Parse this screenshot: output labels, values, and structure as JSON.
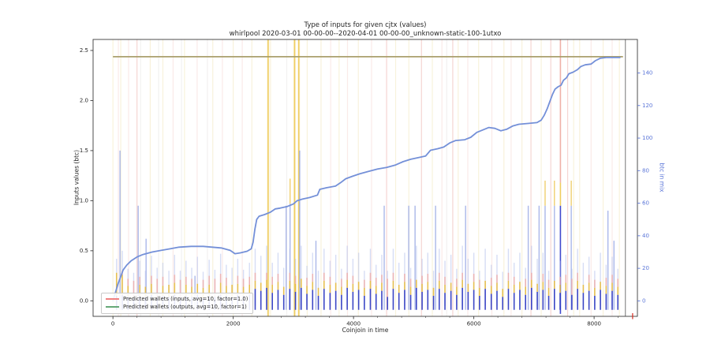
{
  "chart_data": {
    "type": "line",
    "title": "Type of inputs for given cjtx (values)",
    "subtitle": "whirlpool 2020-03-01 00-00-00--2020-04-01 00-00-00_unknown-static-100-1utxo",
    "xlabel": "Coinjoin in time",
    "ylabel_left": "Inputs values (btc)",
    "ylabel_right": "btc in mix",
    "x_ticks": [
      "0",
      "2000",
      "4000",
      "6000",
      "8000"
    ],
    "x_tick_values": [
      0,
      2000,
      4000,
      6000,
      8000
    ],
    "y_ticks_left": [
      "0.0",
      "0.5",
      "1.0",
      "1.5",
      "2.0",
      "2.5"
    ],
    "y_tick_values_left": [
      0.0,
      0.5,
      1.0,
      1.5,
      2.0,
      2.5
    ],
    "y_ticks_right": [
      "0",
      "20",
      "40",
      "60",
      "80",
      "100",
      "120",
      "140"
    ],
    "y_tick_values_right": [
      0,
      20,
      40,
      60,
      80,
      100,
      120,
      140
    ],
    "xlim": [
      -330,
      8720
    ],
    "ylim_left": [
      -0.155,
      2.61
    ],
    "ylim_right": [
      -9.5,
      160.6
    ],
    "grid": false,
    "legend_position": "lower-left",
    "legend": {
      "items": [
        {
          "label": "Predicted wallets (inputs, avg=10, factor=1.0)",
          "color": "#f08080"
        },
        {
          "label": "Predicted wallets (outputs, avg=10, factor=1)",
          "color": "#66a878"
        }
      ]
    },
    "colors": {
      "mix_line": "#7490d8",
      "hline": "#a59b66",
      "end_vline": "#5f5f5f",
      "end_marker": "#d93025",
      "event_blue": "#2a35c0",
      "event_blue_strong": "#2b35c8",
      "event_gold": "#e9ba32",
      "event_pink": "#efa9a5",
      "event_pale": "#aebcec",
      "tall_blue": "#8e9fe2",
      "pale_yellow": "#f3e7bd",
      "pale_pink": "#f5d8d6",
      "pale_gray": "#e9e7e6",
      "salmon": "#eeb9b4",
      "strong_gold": "#edc84e",
      "salmon_strong": "#eda89e",
      "axis": "#3a3a3a",
      "right_axis_text": "#5b76d8",
      "text": "#262626"
    },
    "mix_in_btc_line": {
      "name": "btc in mix (right axis)",
      "points": [
        [
          0,
          0
        ],
        [
          40,
          5
        ],
        [
          90,
          11
        ],
        [
          130,
          15
        ],
        [
          170,
          19
        ],
        [
          230,
          22
        ],
        [
          300,
          24.5
        ],
        [
          400,
          27
        ],
        [
          500,
          28.5
        ],
        [
          650,
          30
        ],
        [
          800,
          31
        ],
        [
          950,
          32
        ],
        [
          1100,
          33
        ],
        [
          1300,
          33.5
        ],
        [
          1500,
          33.5
        ],
        [
          1650,
          33
        ],
        [
          1800,
          32.5
        ],
        [
          1950,
          31
        ],
        [
          2030,
          29
        ],
        [
          2120,
          29.5
        ],
        [
          2230,
          30.5
        ],
        [
          2300,
          32
        ],
        [
          2330,
          36
        ],
        [
          2360,
          44
        ],
        [
          2390,
          50
        ],
        [
          2430,
          52
        ],
        [
          2520,
          53
        ],
        [
          2620,
          54.5
        ],
        [
          2700,
          56.5
        ],
        [
          2780,
          57
        ],
        [
          2900,
          58
        ],
        [
          3000,
          59.5
        ],
        [
          3060,
          61.5
        ],
        [
          3150,
          62.5
        ],
        [
          3270,
          63.5
        ],
        [
          3400,
          65
        ],
        [
          3440,
          68.5
        ],
        [
          3550,
          69.5
        ],
        [
          3700,
          70.5
        ],
        [
          3780,
          72.5
        ],
        [
          3870,
          75
        ],
        [
          3980,
          76.5
        ],
        [
          4100,
          78
        ],
        [
          4250,
          79.5
        ],
        [
          4400,
          81
        ],
        [
          4550,
          82
        ],
        [
          4700,
          83.5
        ],
        [
          4820,
          85.5
        ],
        [
          4950,
          87
        ],
        [
          5080,
          88
        ],
        [
          5200,
          89
        ],
        [
          5280,
          92.5
        ],
        [
          5400,
          93.5
        ],
        [
          5500,
          94.5
        ],
        [
          5600,
          97
        ],
        [
          5700,
          98.5
        ],
        [
          5850,
          99
        ],
        [
          5950,
          100.5
        ],
        [
          6050,
          103.5
        ],
        [
          6150,
          105
        ],
        [
          6250,
          106.5
        ],
        [
          6350,
          106
        ],
        [
          6450,
          104.5
        ],
        [
          6550,
          105.5
        ],
        [
          6650,
          107.5
        ],
        [
          6750,
          108.5
        ],
        [
          6900,
          109
        ],
        [
          7050,
          109.5
        ],
        [
          7120,
          111
        ],
        [
          7170,
          114
        ],
        [
          7220,
          118
        ],
        [
          7270,
          123
        ],
        [
          7310,
          127
        ],
        [
          7350,
          130
        ],
        [
          7400,
          131.5
        ],
        [
          7450,
          132.5
        ],
        [
          7490,
          135.5
        ],
        [
          7540,
          137
        ],
        [
          7580,
          139.5
        ],
        [
          7650,
          140.5
        ],
        [
          7720,
          142
        ],
        [
          7780,
          144
        ],
        [
          7850,
          145
        ],
        [
          7950,
          145.5
        ],
        [
          8020,
          147.5
        ],
        [
          8100,
          149
        ],
        [
          8200,
          149.5
        ],
        [
          8300,
          149.5
        ],
        [
          8430,
          149.5
        ]
      ]
    },
    "hline": {
      "y_right": 150,
      "x1": 0,
      "x2": 8480
    },
    "end_vline": {
      "x": 8520
    },
    "end_marker": {
      "x": 8640
    },
    "full_lines": [
      [
        0,
        "y"
      ],
      [
        90,
        "p"
      ],
      [
        130,
        "y"
      ],
      [
        260,
        "p"
      ],
      [
        400,
        "r"
      ],
      [
        460,
        "g"
      ],
      [
        620,
        "y"
      ],
      [
        760,
        "g"
      ],
      [
        830,
        "y"
      ],
      [
        1000,
        "p"
      ],
      [
        1140,
        "g"
      ],
      [
        1190,
        "y"
      ],
      [
        1400,
        "p"
      ],
      [
        1570,
        "g"
      ],
      [
        1660,
        "y"
      ],
      [
        1820,
        "p"
      ],
      [
        2000,
        "y"
      ],
      [
        2150,
        "p"
      ],
      [
        2310,
        "y"
      ],
      [
        2580,
        "G"
      ],
      [
        2620,
        "y"
      ],
      [
        2890,
        "g"
      ],
      [
        3020,
        "G"
      ],
      [
        3090,
        "G"
      ],
      [
        3230,
        "y"
      ],
      [
        3460,
        "y"
      ],
      [
        3620,
        "p"
      ],
      [
        3760,
        "y"
      ],
      [
        3900,
        "p"
      ],
      [
        4080,
        "y"
      ],
      [
        4300,
        "p"
      ],
      [
        4550,
        "r"
      ],
      [
        4700,
        "y"
      ],
      [
        4920,
        "y"
      ],
      [
        5130,
        "r"
      ],
      [
        5310,
        "y"
      ],
      [
        5470,
        "p"
      ],
      [
        5550,
        "g"
      ],
      [
        5650,
        "r"
      ],
      [
        5740,
        "y"
      ],
      [
        5900,
        "p"
      ],
      [
        6080,
        "y"
      ],
      [
        6300,
        "p"
      ],
      [
        6500,
        "y"
      ],
      [
        6620,
        "p"
      ],
      [
        6800,
        "y"
      ],
      [
        6950,
        "r"
      ],
      [
        7120,
        "y"
      ],
      [
        7280,
        "r"
      ],
      [
        7560,
        "r"
      ],
      [
        7660,
        "y"
      ],
      [
        7760,
        "y"
      ],
      [
        7950,
        "p"
      ],
      [
        8150,
        "y"
      ],
      [
        8300,
        "p"
      ],
      [
        8420,
        "y"
      ]
    ],
    "tall_spikes": [
      [
        118,
        1.5,
        0
      ],
      [
        420,
        0.95,
        0
      ],
      [
        551,
        0.62,
        0
      ],
      [
        1364,
        0.25,
        0
      ],
      [
        2880,
        0.95,
        0
      ],
      [
        2945,
        0.97,
        1
      ],
      [
        3105,
        1.5,
        0
      ],
      [
        3375,
        0.6,
        0
      ],
      [
        4510,
        0.95,
        0
      ],
      [
        4918,
        0.95,
        0
      ],
      [
        5023,
        0.95,
        0
      ],
      [
        5364,
        0.95,
        0
      ],
      [
        5863,
        0.95,
        0
      ],
      [
        6905,
        0.95,
        0
      ],
      [
        7085,
        0.95,
        0
      ],
      [
        7185,
        0.95,
        1
      ],
      [
        7340,
        0.95,
        1
      ],
      [
        7620,
        0.95,
        1
      ],
      [
        8230,
        0.9,
        0
      ],
      [
        8330,
        0.6,
        0
      ]
    ],
    "special_line": {
      "x": 7440,
      "segments": [
        {
          "from": -0.13,
          "to": 0.95,
          "color_key": "event_blue_strong"
        },
        {
          "from": 0.95,
          "to": 1.18,
          "color_key": "strong_gold"
        },
        {
          "from": 1.18,
          "to": 2.61,
          "color_key": "salmon_strong"
        }
      ]
    },
    "events": [
      [
        60,
        0.05,
        0.28,
        0,
        0.42
      ],
      [
        155,
        0.06,
        0.26,
        0.3,
        0.5
      ],
      [
        250,
        0.04,
        0.15,
        0.22,
        0.32
      ],
      [
        345,
        0.03,
        0,
        0.2,
        0.28
      ],
      [
        445,
        0.05,
        0.16,
        0.24,
        0.4
      ],
      [
        540,
        0.04,
        0.14,
        0,
        0.3
      ],
      [
        640,
        0.06,
        0.17,
        0.25,
        0.45
      ],
      [
        735,
        0.03,
        0,
        0.22,
        0.33
      ],
      [
        830,
        0.05,
        0.15,
        0.24,
        0.38
      ],
      [
        930,
        0.04,
        0.16,
        0,
        0.3
      ],
      [
        1025,
        0.06,
        0.18,
        0.26,
        0.46
      ],
      [
        1120,
        0.03,
        0,
        0.21,
        0.3
      ],
      [
        1215,
        0.05,
        0.16,
        0.24,
        0.4
      ],
      [
        1310,
        0.04,
        0.14,
        0.22,
        0.33
      ],
      [
        1405,
        0.06,
        0.17,
        0,
        0.44
      ],
      [
        1500,
        0.03,
        0.13,
        0.21,
        0.29
      ],
      [
        1600,
        0.05,
        0.16,
        0.25,
        0.41
      ],
      [
        1695,
        0.04,
        0,
        0.22,
        0.31
      ],
      [
        1790,
        0.06,
        0.18,
        0.27,
        0.47
      ],
      [
        1885,
        0.05,
        0.15,
        0.23,
        0.36
      ],
      [
        1980,
        0.04,
        0.16,
        0,
        0.33
      ],
      [
        2075,
        0.06,
        0.17,
        0.25,
        0.42
      ],
      [
        2170,
        0.05,
        0.14,
        0.22,
        0.31
      ],
      [
        2270,
        0.06,
        0.16,
        0.24,
        0.38
      ],
      [
        2365,
        0.12,
        0.2,
        0.28,
        0.52
      ],
      [
        2460,
        0.1,
        0.18,
        0,
        0.45
      ],
      [
        2555,
        0.13,
        0.21,
        0.28,
        0.55
      ],
      [
        2650,
        0.08,
        0.16,
        0.24,
        0.38
      ],
      [
        2745,
        0.11,
        0.19,
        0.27,
        0.48
      ],
      [
        2840,
        0.06,
        0.14,
        0,
        0.33
      ],
      [
        2940,
        0.12,
        0.2,
        0.28,
        0.52
      ],
      [
        3035,
        0.09,
        0.17,
        0.25,
        0.42
      ],
      [
        3130,
        0.13,
        0.22,
        0,
        0.55
      ],
      [
        3225,
        0.07,
        0.15,
        0.23,
        0.35
      ],
      [
        3320,
        0.11,
        0.19,
        0.27,
        0.48
      ],
      [
        3415,
        0.05,
        0.13,
        0,
        0.3
      ],
      [
        3510,
        0.12,
        0.2,
        0.28,
        0.52
      ],
      [
        3610,
        0.08,
        0.16,
        0.24,
        0.4
      ],
      [
        3705,
        0.1,
        0.18,
        0,
        0.46
      ],
      [
        3800,
        0.06,
        0.14,
        0.22,
        0.32
      ],
      [
        3895,
        0.13,
        0.21,
        0.28,
        0.55
      ],
      [
        3990,
        0.09,
        0.17,
        0.25,
        0.42
      ],
      [
        4085,
        0.11,
        0.19,
        0,
        0.48
      ],
      [
        4180,
        0.05,
        0.13,
        0.21,
        0.3
      ],
      [
        4280,
        0.12,
        0.2,
        0.28,
        0.52
      ],
      [
        4375,
        0.07,
        0.15,
        0.23,
        0.36
      ],
      [
        4470,
        0.1,
        0.18,
        0.26,
        0.46
      ],
      [
        4565,
        0.04,
        0,
        0.22,
        0.3
      ],
      [
        4660,
        0.12,
        0.2,
        0.28,
        0.52
      ],
      [
        4755,
        0.08,
        0.16,
        0,
        0.38
      ],
      [
        4850,
        0.11,
        0.19,
        0.27,
        0.48
      ],
      [
        4950,
        0.06,
        0.14,
        0.22,
        0.33
      ],
      [
        5045,
        0.13,
        0.21,
        0,
        0.55
      ],
      [
        5140,
        0.09,
        0.17,
        0.25,
        0.42
      ],
      [
        5235,
        0.11,
        0.19,
        0.27,
        0.48
      ],
      [
        5330,
        0.05,
        0.13,
        0,
        0.3
      ],
      [
        5425,
        0.12,
        0.2,
        0.28,
        0.52
      ],
      [
        5520,
        0.08,
        0.16,
        0.24,
        0.4
      ],
      [
        5620,
        0.1,
        0.18,
        0,
        0.46
      ],
      [
        5715,
        0.06,
        0.14,
        0.22,
        0.32
      ],
      [
        5810,
        0.13,
        0.21,
        0.28,
        0.55
      ],
      [
        5905,
        0.09,
        0.17,
        0,
        0.42
      ],
      [
        6000,
        0.11,
        0.19,
        0.27,
        0.48
      ],
      [
        6095,
        0.05,
        0.13,
        0.21,
        0.3
      ],
      [
        6190,
        0.12,
        0.2,
        0,
        0.52
      ],
      [
        6290,
        0.07,
        0.15,
        0.23,
        0.36
      ],
      [
        6385,
        0.1,
        0.18,
        0.26,
        0.46
      ],
      [
        6480,
        0.04,
        0.12,
        0,
        0.29
      ],
      [
        6575,
        0.12,
        0.2,
        0.28,
        0.52
      ],
      [
        6670,
        0.08,
        0.16,
        0.24,
        0.38
      ],
      [
        6765,
        0.11,
        0.19,
        0,
        0.48
      ],
      [
        6860,
        0.06,
        0.14,
        0.22,
        0.33
      ],
      [
        6960,
        0.13,
        0.21,
        0.28,
        0.55
      ],
      [
        7055,
        0.09,
        0.17,
        0,
        0.42
      ],
      [
        7150,
        0.11,
        0.19,
        0.27,
        0.48
      ],
      [
        7245,
        0.05,
        0.13,
        0.21,
        0.3
      ],
      [
        7340,
        0.12,
        0.2,
        0,
        0.52
      ],
      [
        7435,
        0.08,
        0.16,
        0.24,
        0.4
      ],
      [
        7530,
        0.1,
        0.18,
        0.26,
        0.46
      ],
      [
        7630,
        0.06,
        0,
        0.22,
        0.32
      ],
      [
        7725,
        0.12,
        0.2,
        0.28,
        0.52
      ],
      [
        7820,
        0.08,
        0.16,
        0,
        0.38
      ],
      [
        7915,
        0.1,
        0.18,
        0.26,
        0.44
      ],
      [
        8010,
        0.05,
        0.13,
        0.21,
        0.3
      ],
      [
        8105,
        0.11,
        0.19,
        0,
        0.48
      ],
      [
        8200,
        0.07,
        0.15,
        0.23,
        0.36
      ],
      [
        8300,
        0.1,
        0.18,
        0.26,
        0.44
      ],
      [
        8395,
        0.06,
        0.14,
        0.22,
        0.32
      ]
    ]
  }
}
